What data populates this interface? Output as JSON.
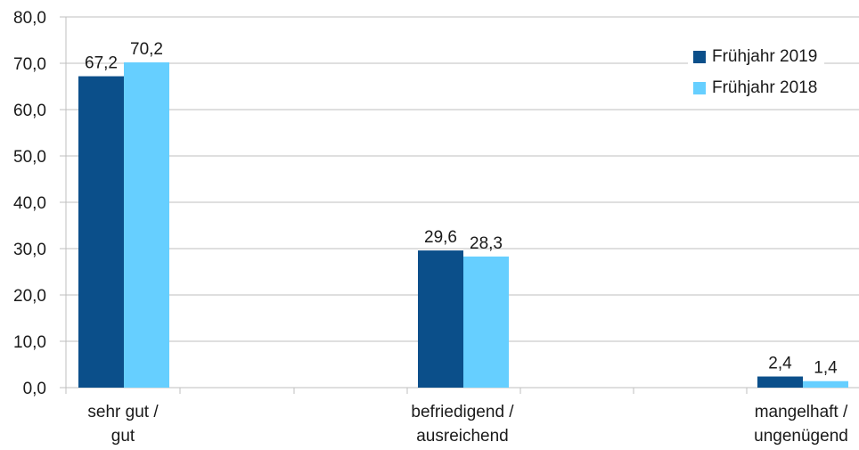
{
  "chart_data": {
    "type": "bar",
    "categories": [
      [
        "sehr gut /",
        "gut"
      ],
      [
        "befriedigend /",
        "ausreichend"
      ],
      [
        "mangelhaft /",
        "ungenügend"
      ]
    ],
    "series": [
      {
        "name": "Frühjahr 2019",
        "color": "#0b4f8a",
        "values": [
          67.2,
          29.6,
          2.4
        ],
        "labels": [
          "67,2",
          "29,6",
          "2,4"
        ]
      },
      {
        "name": "Frühjahr 2018",
        "color": "#66cfff",
        "values": [
          70.2,
          28.3,
          1.4
        ],
        "labels": [
          "70,2",
          "28,3",
          "1,4"
        ]
      }
    ],
    "yticks": [
      "0,0",
      "10,0",
      "20,0",
      "30,0",
      "40,0",
      "50,0",
      "60,0",
      "70,0",
      "80,0"
    ],
    "ylim": [
      0,
      80
    ],
    "grid": true,
    "legend_position": "top-right"
  }
}
